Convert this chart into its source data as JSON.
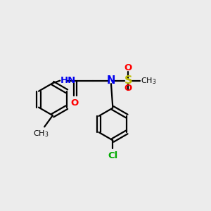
{
  "bg_color": "#ececec",
  "bond_color": "#000000",
  "atom_colors": {
    "N": "#0000ee",
    "O": "#ff0000",
    "S": "#bbbb00",
    "Cl": "#00aa00",
    "H": "#5577aa",
    "C": "#000000"
  },
  "lw": 1.6,
  "fs": 9.5,
  "r": 0.78
}
